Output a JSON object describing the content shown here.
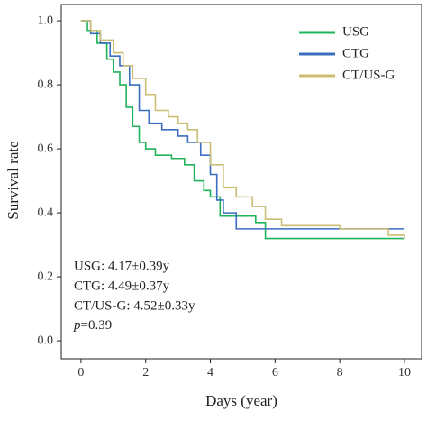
{
  "chart_data": {
    "type": "step",
    "xlabel": "Days (year)",
    "ylabel": "Survival rate",
    "xlim": [
      -0.61,
      10.53
    ],
    "ylim": [
      -0.056,
      1.051
    ],
    "xticks": [
      0,
      2,
      4,
      6,
      8,
      10
    ],
    "yticks": [
      {
        "value": 0,
        "label": "0.0"
      },
      0.2,
      0.4,
      0.6,
      0.8,
      {
        "value": 1,
        "label": "1.0"
      }
    ],
    "legend": "upper right",
    "series": [
      {
        "name": "USG",
        "color": "#1fb35a",
        "x": [
          0,
          0.2,
          0.5,
          0.8,
          1.0,
          1.2,
          1.4,
          1.6,
          1.8,
          2.0,
          2.3,
          2.8,
          3.2,
          3.5,
          3.8,
          4.0,
          4.3,
          5.0,
          5.4,
          5.7,
          10
        ],
        "values": [
          1.0,
          0.97,
          0.93,
          0.88,
          0.84,
          0.8,
          0.73,
          0.67,
          0.62,
          0.6,
          0.58,
          0.57,
          0.55,
          0.5,
          0.47,
          0.45,
          0.39,
          0.39,
          0.37,
          0.32,
          0.32
        ]
      },
      {
        "name": "CTG",
        "color": "#3a6cc0",
        "x": [
          0,
          0.3,
          0.6,
          0.9,
          1.2,
          1.5,
          1.8,
          2.1,
          2.5,
          3.0,
          3.3,
          3.7,
          4.0,
          4.2,
          4.4,
          4.8,
          10
        ],
        "values": [
          1.0,
          0.96,
          0.93,
          0.89,
          0.86,
          0.8,
          0.72,
          0.68,
          0.66,
          0.64,
          0.62,
          0.58,
          0.52,
          0.44,
          0.4,
          0.35,
          0.35
        ]
      },
      {
        "name": "CT/US-G",
        "color": "#cbbd72",
        "x": [
          0,
          0.3,
          0.6,
          1.0,
          1.3,
          1.6,
          2.0,
          2.3,
          2.7,
          3.0,
          3.3,
          3.6,
          4.0,
          4.4,
          4.8,
          5.3,
          5.7,
          6.2,
          8.0,
          9.5,
          10
        ],
        "values": [
          1.0,
          0.97,
          0.94,
          0.9,
          0.86,
          0.82,
          0.77,
          0.72,
          0.7,
          0.68,
          0.66,
          0.62,
          0.55,
          0.48,
          0.45,
          0.42,
          0.38,
          0.36,
          0.35,
          0.33,
          0.32
        ]
      }
    ],
    "annotations": [
      "USG: 4.17±0.39y",
      "CTG: 4.49±0.37y",
      "CT/US-G: 4.52±0.33y",
      "p=0.39"
    ]
  }
}
